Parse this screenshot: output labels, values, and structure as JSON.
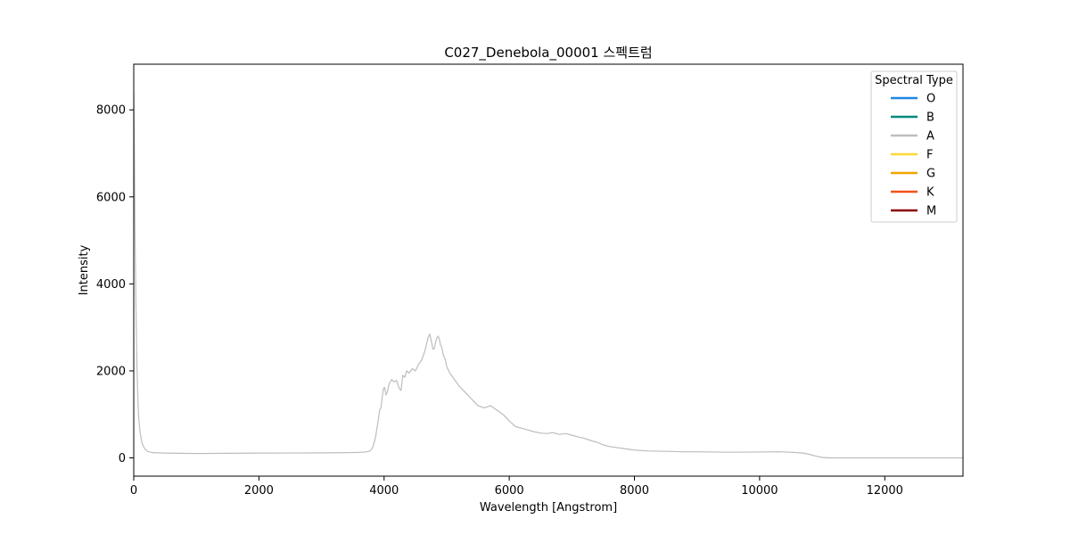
{
  "chart_data": {
    "type": "line",
    "title": "C027_Denebola_00001 스펙트럼",
    "xlabel": "Wavelength [Angstrom]",
    "ylabel": "Intensity",
    "xlim": [
      0,
      13250
    ],
    "ylim": [
      -420,
      9050
    ],
    "xticks": [
      0,
      2000,
      4000,
      6000,
      8000,
      10000,
      12000
    ],
    "yticks": [
      0,
      2000,
      4000,
      6000,
      8000
    ],
    "grid": false,
    "legend": {
      "title": "Spectral Type",
      "placement": "top-right",
      "entries": [
        {
          "label": "O",
          "color": "#1e88e5"
        },
        {
          "label": "B",
          "color": "#00897b"
        },
        {
          "label": "A",
          "color": "#bdbdbd"
        },
        {
          "label": "F",
          "color": "#fdd835"
        },
        {
          "label": "G",
          "color": "#f0a500"
        },
        {
          "label": "K",
          "color": "#f4511e"
        },
        {
          "label": "M",
          "color": "#8b0000"
        }
      ]
    },
    "series": [
      {
        "color": "#bdbdbd",
        "x": [
          0,
          10,
          20,
          35,
          50,
          65,
          80,
          100,
          130,
          170,
          220,
          300,
          500,
          1000,
          1500,
          2000,
          2500,
          3000,
          3400,
          3600,
          3700,
          3780,
          3820,
          3860,
          3900,
          3930,
          3950,
          3970,
          3990,
          4010,
          4030,
          4050,
          4080,
          4120,
          4160,
          4200,
          4240,
          4270,
          4300,
          4330,
          4360,
          4400,
          4450,
          4500,
          4550,
          4600,
          4650,
          4700,
          4730,
          4760,
          4780,
          4800,
          4830,
          4860,
          4880,
          4900,
          4920,
          4950,
          4980,
          5000,
          5050,
          5100,
          5200,
          5300,
          5400,
          5500,
          5600,
          5700,
          5800,
          5900,
          6000,
          6100,
          6200,
          6300,
          6400,
          6500,
          6600,
          6700,
          6800,
          6900,
          7000,
          7100,
          7200,
          7300,
          7400,
          7500,
          7600,
          7800,
          8000,
          8200,
          8500,
          8800,
          9000,
          9500,
          10000,
          10300,
          10500,
          10700,
          10800,
          10900,
          11000,
          11100,
          11500,
          12000,
          12500,
          13250
        ],
        "y": [
          8400,
          7200,
          5200,
          3500,
          2200,
          1400,
          900,
          600,
          350,
          220,
          150,
          120,
          110,
          100,
          105,
          110,
          112,
          115,
          120,
          125,
          135,
          160,
          250,
          450,
          800,
          1100,
          1150,
          1400,
          1600,
          1620,
          1450,
          1500,
          1700,
          1800,
          1750,
          1780,
          1600,
          1550,
          1900,
          1850,
          2000,
          1950,
          2050,
          2000,
          2150,
          2250,
          2450,
          2750,
          2850,
          2650,
          2500,
          2500,
          2700,
          2800,
          2750,
          2600,
          2550,
          2350,
          2250,
          2100,
          1950,
          1850,
          1650,
          1500,
          1350,
          1200,
          1150,
          1200,
          1100,
          1000,
          850,
          720,
          680,
          640,
          600,
          570,
          560,
          580,
          540,
          560,
          520,
          480,
          450,
          400,
          360,
          300,
          260,
          220,
          180,
          160,
          150,
          140,
          140,
          130,
          135,
          140,
          130,
          110,
          80,
          40,
          10,
          0,
          0,
          0,
          0,
          0
        ]
      }
    ]
  }
}
